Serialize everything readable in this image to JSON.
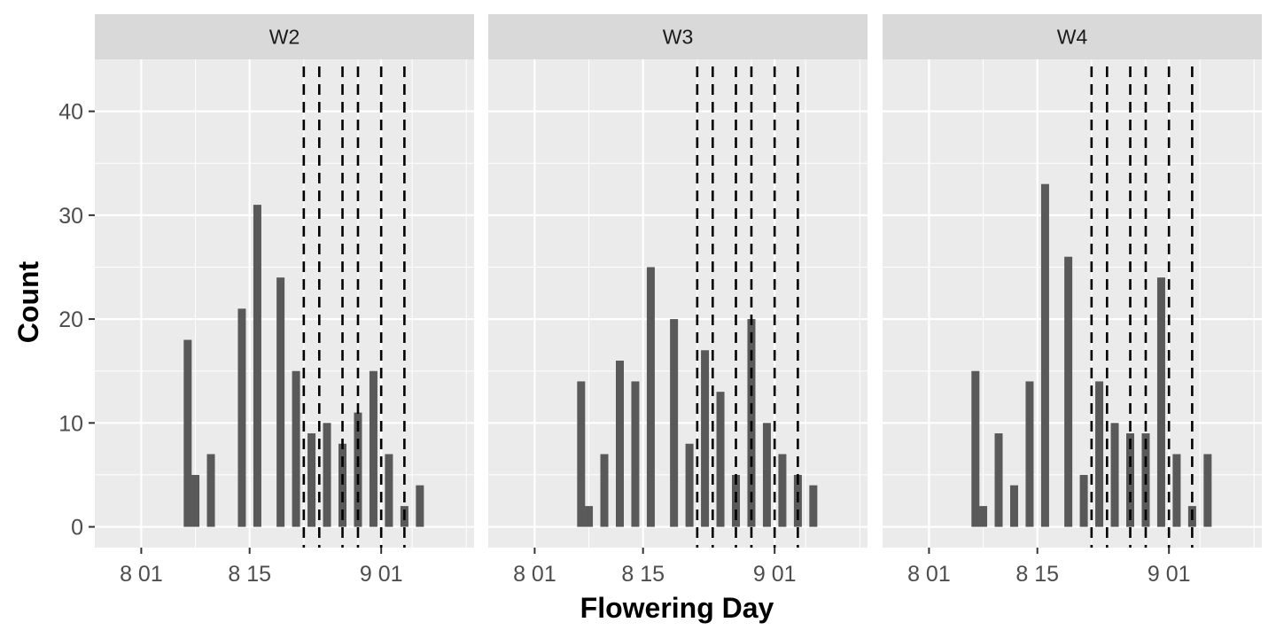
{
  "chart_data": {
    "type": "bar",
    "title": "",
    "xlabel": "Flowering Day",
    "ylabel": "Count",
    "x_scale": "date",
    "xlim": [
      "07-26",
      "09-13"
    ],
    "ylim": [
      -2,
      45
    ],
    "x_tick_labels": [
      {
        "date": "08-01",
        "label": "8 01"
      },
      {
        "date": "08-15",
        "label": "8 15"
      },
      {
        "date": "09-01",
        "label": "9 01"
      }
    ],
    "y_ticks": [
      0,
      10,
      20,
      30,
      40
    ],
    "grid": true,
    "legend": "none",
    "bar_color": "#595959",
    "panel_background": "#ebebeb",
    "strip_background": "#d9d9d9",
    "reference_line_style": "dashed",
    "reference_line_color": "#000000",
    "panels": [
      {
        "label": "W2",
        "bars": [
          {
            "x": "08-07",
            "y": 18
          },
          {
            "x": "08-08",
            "y": 5
          },
          {
            "x": "08-10",
            "y": 7
          },
          {
            "x": "08-14",
            "y": 21
          },
          {
            "x": "08-16",
            "y": 31
          },
          {
            "x": "08-19",
            "y": 24
          },
          {
            "x": "08-21",
            "y": 15
          },
          {
            "x": "08-23",
            "y": 9
          },
          {
            "x": "08-25",
            "y": 10
          },
          {
            "x": "08-27",
            "y": 8
          },
          {
            "x": "08-29",
            "y": 11
          },
          {
            "x": "08-31",
            "y": 15
          },
          {
            "x": "09-02",
            "y": 7
          },
          {
            "x": "09-04",
            "y": 2
          },
          {
            "x": "09-06",
            "y": 4
          }
        ],
        "reference_lines": [
          "08-22",
          "08-24",
          "08-27",
          "08-29",
          "09-01",
          "09-04"
        ]
      },
      {
        "label": "W3",
        "bars": [
          {
            "x": "08-07",
            "y": 14
          },
          {
            "x": "08-08",
            "y": 2
          },
          {
            "x": "08-10",
            "y": 7
          },
          {
            "x": "08-12",
            "y": 16
          },
          {
            "x": "08-14",
            "y": 14
          },
          {
            "x": "08-16",
            "y": 25
          },
          {
            "x": "08-19",
            "y": 20
          },
          {
            "x": "08-21",
            "y": 8
          },
          {
            "x": "08-23",
            "y": 17
          },
          {
            "x": "08-25",
            "y": 13
          },
          {
            "x": "08-27",
            "y": 5
          },
          {
            "x": "08-29",
            "y": 20
          },
          {
            "x": "08-31",
            "y": 10
          },
          {
            "x": "09-02",
            "y": 7
          },
          {
            "x": "09-04",
            "y": 5
          },
          {
            "x": "09-06",
            "y": 4
          }
        ],
        "reference_lines": [
          "08-22",
          "08-24",
          "08-27",
          "08-29",
          "09-01",
          "09-04"
        ]
      },
      {
        "label": "W4",
        "bars": [
          {
            "x": "08-07",
            "y": 15
          },
          {
            "x": "08-08",
            "y": 2
          },
          {
            "x": "08-10",
            "y": 9
          },
          {
            "x": "08-12",
            "y": 4
          },
          {
            "x": "08-14",
            "y": 14
          },
          {
            "x": "08-16",
            "y": 33
          },
          {
            "x": "08-19",
            "y": 26
          },
          {
            "x": "08-21",
            "y": 5
          },
          {
            "x": "08-23",
            "y": 14
          },
          {
            "x": "08-25",
            "y": 10
          },
          {
            "x": "08-27",
            "y": 9
          },
          {
            "x": "08-29",
            "y": 9
          },
          {
            "x": "08-31",
            "y": 24
          },
          {
            "x": "09-02",
            "y": 7
          },
          {
            "x": "09-04",
            "y": 2
          },
          {
            "x": "09-06",
            "y": 7
          }
        ],
        "reference_lines": [
          "08-22",
          "08-24",
          "08-27",
          "08-29",
          "09-01",
          "09-04"
        ]
      }
    ]
  }
}
